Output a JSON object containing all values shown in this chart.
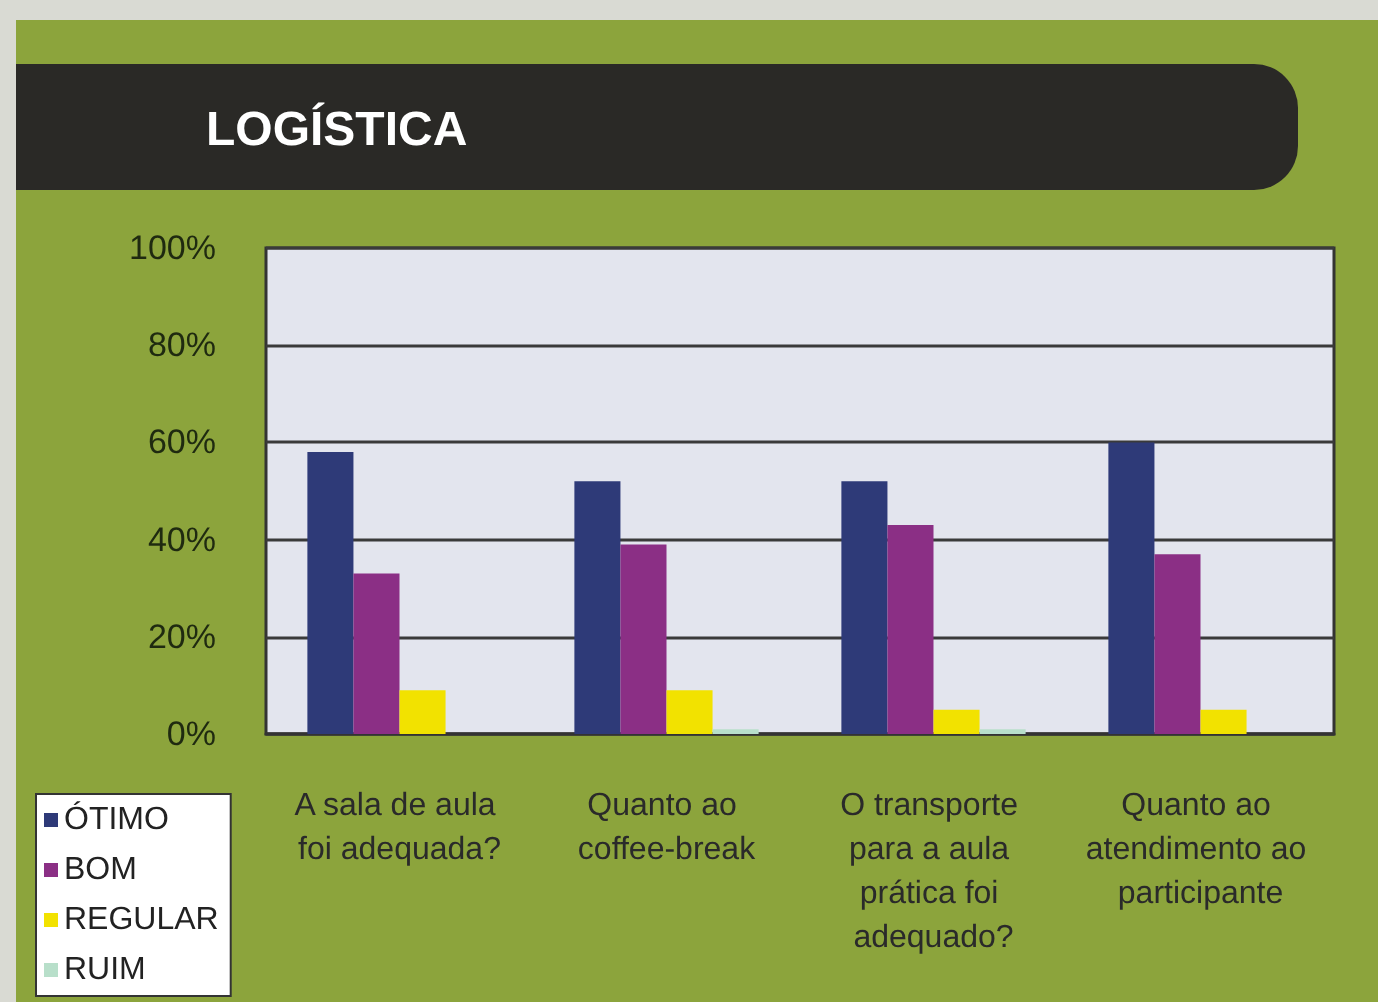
{
  "chart_data": {
    "type": "bar",
    "title": "LOGÍSTICA",
    "categories": [
      "A sala de aula foi adequada?",
      "Quanto ao coffee-break",
      "O transporte para a aula prática foi adequado?",
      "Quanto ao atendimento ao participante"
    ],
    "series": [
      {
        "name": "ÓTIMO",
        "color": "#2e3a78",
        "values": [
          58,
          52,
          52,
          60
        ]
      },
      {
        "name": "BOM",
        "color": "#8b2f85",
        "values": [
          33,
          39,
          43,
          37
        ]
      },
      {
        "name": "REGULAR",
        "color": "#f2e200",
        "values": [
          9,
          9,
          5,
          5
        ]
      },
      {
        "name": "RUIM",
        "color": "#b8dfca",
        "values": [
          0,
          1,
          1,
          0
        ]
      }
    ],
    "ylim": [
      0,
      100
    ],
    "yticks": [
      {
        "value": 0,
        "label": "0%"
      },
      {
        "value": 20,
        "label": "20%"
      },
      {
        "value": 40,
        "label": "40%"
      },
      {
        "value": 60,
        "label": "60%"
      },
      {
        "value": 80,
        "label": "80%"
      },
      {
        "value": 100,
        "label": "100%"
      }
    ],
    "grid": "y",
    "legend": "bottom left"
  }
}
